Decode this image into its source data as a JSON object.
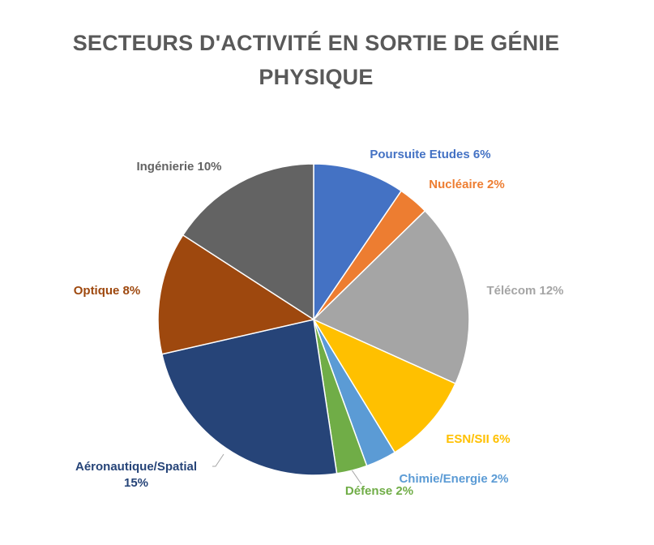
{
  "title_line1": "SECTEURS D'ACTIVITÉ EN SORTIE DE GÉNIE",
  "title_line2": "PHYSIQUE",
  "chart_data": {
    "type": "pie",
    "title": "SECTEURS D'ACTIVITÉ EN SORTIE DE GÉNIE PHYSIQUE",
    "slices": [
      {
        "label": "Poursuite Etudes",
        "percent_label": "6%",
        "value": 6,
        "color": "#4472C4"
      },
      {
        "label": "Nucléaire",
        "percent_label": "2%",
        "value": 2,
        "color": "#ED7D31"
      },
      {
        "label": "Télécom",
        "percent_label": "12%",
        "value": 12,
        "color": "#A5A5A5"
      },
      {
        "label": "ESN/SII",
        "percent_label": "6%",
        "value": 6,
        "color": "#FFC000"
      },
      {
        "label": "Chimie/Energie",
        "percent_label": "2%",
        "value": 2,
        "color": "#5B9BD5"
      },
      {
        "label": "Défense",
        "percent_label": "2%",
        "value": 2,
        "color": "#70AD47"
      },
      {
        "label": "Aéronautique/Spatial",
        "percent_label": "15%",
        "value": 15,
        "color": "#264478"
      },
      {
        "label": "Optique",
        "percent_label": "8%",
        "value": 8,
        "color": "#9E480E"
      },
      {
        "label": "Ingénierie",
        "percent_label": "10%",
        "value": 10,
        "color": "#636363"
      }
    ]
  }
}
